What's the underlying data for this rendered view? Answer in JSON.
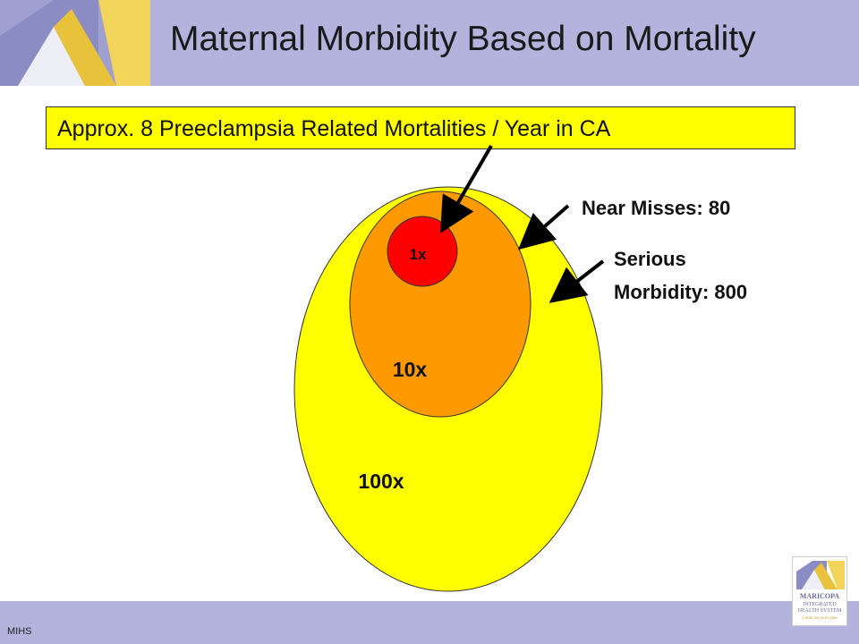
{
  "header": {
    "title": "Maternal Morbidity Based on Mortality"
  },
  "callout": {
    "text": "Approx. 8 Preeclampsia Related Mortalities / Year in CA"
  },
  "diagram": {
    "inner_label": "1x",
    "middle_label": "10x",
    "outer_label": "100x",
    "near_misses": "Near Misses: 80",
    "serious_line1": "Serious",
    "serious_line2": "Morbidity: 800",
    "colors": {
      "inner": "#ff0000",
      "middle": "#ff9900",
      "outer": "#ffff00"
    }
  },
  "footer": {
    "text": "MIHS"
  },
  "logo": {
    "line1": "MARICOPA",
    "line2": "INTEGRATED",
    "line3": "HEALTH SYSTEM",
    "line4": "Count on us to care"
  }
}
